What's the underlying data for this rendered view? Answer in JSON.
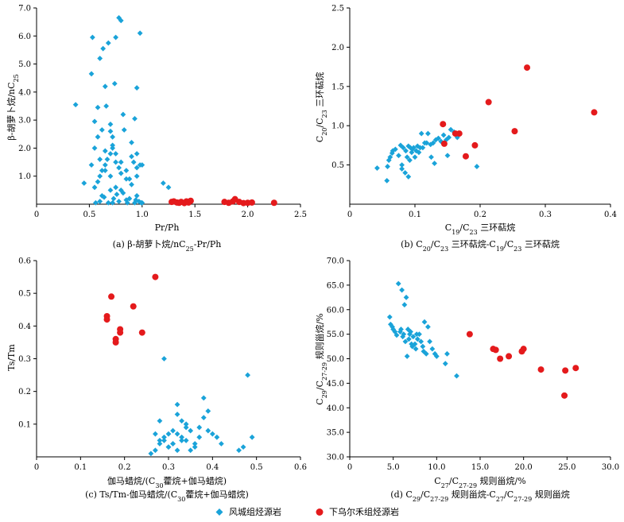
{
  "colors": {
    "blue": "#1aa3d9",
    "red": "#e41a1c",
    "axis": "#000000"
  },
  "legend": [
    {
      "label": "风城组烃源岩",
      "marker": "diamond",
      "color": "#1aa3d9"
    },
    {
      "label": "下乌尔禾组烃源岩",
      "marker": "circle",
      "color": "#e41a1c"
    }
  ],
  "captions": {
    "a": "(a) β-胡萝卜烷/nC25-Pr/Ph",
    "b": "(b) C20/C23 三环萜烷-C19/C23 三环萜烷",
    "c": "(c) Ts/Tm-伽马蜡烷/(C30藿烷+伽马蜡烷)",
    "d": "(d) C29/C27-29 规则甾烷-C27/C27-29 规则甾烷"
  },
  "chart_data": [
    {
      "id": "a",
      "type": "scatter",
      "xlabel": "Pr/Ph",
      "ylabel": "β-胡萝卜烷/nC25",
      "xlim": [
        0,
        2.5
      ],
      "ylim": [
        0,
        7.0
      ],
      "xticks": [
        0,
        0.5,
        1.0,
        1.5,
        2.0,
        2.5
      ],
      "xtick_labels": [
        "0",
        "0.5",
        "1.0",
        "1.5",
        "2.0",
        "2.5"
      ],
      "yticks": [
        1.0,
        2.0,
        3.0,
        4.0,
        5.0,
        6.0,
        7.0
      ],
      "ytick_labels": [
        "1.0",
        "2.0",
        "3.0",
        "4.0",
        "5.0",
        "6.0",
        "7.0"
      ],
      "series": [
        {
          "name": "风城组烃源岩",
          "color": "#1aa3d9",
          "marker": "diamond",
          "x": [
            0.37,
            0.45,
            0.52,
            0.53,
            0.55,
            0.58,
            0.6,
            0.62,
            0.63,
            0.65,
            0.66,
            0.68,
            0.7,
            0.72,
            0.74,
            0.75,
            0.78,
            0.8,
            0.82,
            0.83,
            0.93,
            0.95,
            0.98,
            0.55,
            0.58,
            0.6,
            0.62,
            0.65,
            0.67,
            0.7,
            0.72,
            0.75,
            0.78,
            0.8,
            0.85,
            0.9,
            0.92,
            0.95,
            0.98,
            0.55,
            0.6,
            0.65,
            0.7,
            0.72,
            0.75,
            0.8,
            0.85,
            0.88,
            0.9,
            0.95,
            1.0,
            0.6,
            0.62,
            0.68,
            0.7,
            0.73,
            0.78,
            0.82,
            0.88,
            0.93,
            0.95,
            0.97,
            0.52,
            0.58,
            0.65,
            0.7,
            0.75,
            0.8,
            0.85,
            0.9,
            0.95,
            1.0,
            1.2,
            1.25,
            1.3,
            0.56,
            0.64,
            0.72,
            0.76,
            0.86,
            0.94,
            0.99
          ],
          "y": [
            3.55,
            0.75,
            4.65,
            5.95,
            2.95,
            3.45,
            5.2,
            2.65,
            5.55,
            4.2,
            3.5,
            5.75,
            2.85,
            2.4,
            4.3,
            5.95,
            6.65,
            6.55,
            3.2,
            2.65,
            3.05,
            4.15,
            6.1,
            0.6,
            0.8,
            1.0,
            1.2,
            1.4,
            1.6,
            1.8,
            2.0,
            1.5,
            1.3,
            1.1,
            0.9,
            1.7,
            1.5,
            1.3,
            1.4,
            2.0,
            1.6,
            1.2,
            1.0,
            2.1,
            1.8,
            1.5,
            1.2,
            0.9,
            2.2,
            1.8,
            1.4,
            0.1,
            0.3,
            0.05,
            0.5,
            0.2,
            0.1,
            0.4,
            0.2,
            0.05,
            0.3,
            0.1,
            1.4,
            2.4,
            1.9,
            2.6,
            0.6,
            0.5,
            0.15,
            0.7,
            1.0,
            0.05,
            0.75,
            0.6,
            0.1,
            0.05,
            0.25,
            0.05,
            0.35,
            0.05,
            0.15,
            0.05
          ]
        },
        {
          "name": "下乌尔禾组烃源岩",
          "color": "#e41a1c",
          "marker": "circle",
          "x": [
            1.28,
            1.3,
            1.33,
            1.35,
            1.37,
            1.4,
            1.42,
            1.44,
            1.46,
            1.78,
            1.82,
            1.86,
            1.88,
            1.92,
            1.96,
            2.0,
            2.04,
            2.25
          ],
          "y": [
            0.08,
            0.1,
            0.06,
            0.05,
            0.08,
            0.04,
            0.1,
            0.06,
            0.12,
            0.08,
            0.05,
            0.1,
            0.18,
            0.08,
            0.04,
            0.05,
            0.06,
            0.05
          ]
        }
      ]
    },
    {
      "id": "b",
      "type": "scatter",
      "xlabel": "C19/C23 三环萜烷",
      "ylabel": "C20/C23 三环萜烷",
      "xlim": [
        0,
        0.4
      ],
      "ylim": [
        0,
        2.5
      ],
      "xticks": [
        0,
        0.1,
        0.2,
        0.3,
        0.4
      ],
      "xtick_labels": [
        "0",
        "0.1",
        "0.2",
        "0.3",
        "0.4"
      ],
      "yticks": [
        0.5,
        1.0,
        1.5,
        2.0,
        2.5
      ],
      "ytick_labels": [
        "0.5",
        "1.0",
        "1.5",
        "2.0",
        "2.5"
      ],
      "series": [
        {
          "name": "风城组烃源岩",
          "color": "#1aa3d9",
          "marker": "diamond",
          "x": [
            0.042,
            0.057,
            0.058,
            0.06,
            0.062,
            0.065,
            0.066,
            0.075,
            0.078,
            0.08,
            0.082,
            0.085,
            0.086,
            0.088,
            0.09,
            0.092,
            0.093,
            0.095,
            0.096,
            0.098,
            0.1,
            0.102,
            0.104,
            0.106,
            0.108,
            0.11,
            0.112,
            0.115,
            0.12,
            0.124,
            0.128,
            0.132,
            0.136,
            0.14,
            0.144,
            0.148,
            0.152,
            0.155,
            0.16,
            0.165,
            0.195,
            0.13,
            0.125,
            0.118,
            0.15,
            0.09,
            0.08,
            0.07
          ],
          "y": [
            0.46,
            0.3,
            0.48,
            0.56,
            0.6,
            0.65,
            0.68,
            0.62,
            0.75,
            0.5,
            0.72,
            0.4,
            0.68,
            0.6,
            0.74,
            0.56,
            0.72,
            0.66,
            0.7,
            0.72,
            0.6,
            0.68,
            0.74,
            0.66,
            0.72,
            0.9,
            0.72,
            0.78,
            0.9,
            0.76,
            0.78,
            0.82,
            0.84,
            0.8,
            0.88,
            0.82,
            0.85,
            0.95,
            0.92,
            0.85,
            0.48,
            0.52,
            0.6,
            0.78,
            0.62,
            0.35,
            0.45,
            0.7
          ]
        },
        {
          "name": "下乌尔禾组烃源岩",
          "color": "#e41a1c",
          "marker": "circle",
          "x": [
            0.143,
            0.145,
            0.162,
            0.168,
            0.178,
            0.192,
            0.213,
            0.253,
            0.272,
            0.375
          ],
          "y": [
            1.02,
            0.77,
            0.9,
            0.9,
            0.61,
            0.75,
            1.3,
            0.93,
            1.74,
            1.17
          ]
        }
      ]
    },
    {
      "id": "c",
      "type": "scatter",
      "xlabel": "伽马蜡烷/(C30藿烷+伽马蜡烷)",
      "ylabel": "Ts/Tm",
      "xlim": [
        0,
        0.6
      ],
      "ylim": [
        0,
        0.6
      ],
      "xticks": [
        0,
        0.1,
        0.2,
        0.3,
        0.4,
        0.5,
        0.6
      ],
      "xtick_labels": [
        "0",
        "0.1",
        "0.2",
        "0.3",
        "0.4",
        "0.5",
        "0.6"
      ],
      "yticks": [
        0.1,
        0.2,
        0.3,
        0.4,
        0.5,
        0.6
      ],
      "ytick_labels": [
        "0.1",
        "0.2",
        "0.3",
        "0.4",
        "0.5",
        "0.6"
      ],
      "series": [
        {
          "name": "风城组烃源岩",
          "color": "#1aa3d9",
          "marker": "diamond",
          "x": [
            0.26,
            0.27,
            0.28,
            0.29,
            0.3,
            0.31,
            0.32,
            0.33,
            0.34,
            0.35,
            0.36,
            0.37,
            0.38,
            0.39,
            0.4,
            0.41,
            0.42,
            0.46,
            0.47,
            0.48,
            0.49,
            0.27,
            0.28,
            0.29,
            0.3,
            0.31,
            0.32,
            0.33,
            0.34,
            0.35,
            0.36,
            0.28,
            0.3,
            0.32,
            0.33,
            0.34,
            0.37,
            0.38,
            0.39,
            0.29,
            0.31,
            0.32
          ],
          "y": [
            0.01,
            0.07,
            0.11,
            0.3,
            0.07,
            0.04,
            0.16,
            0.11,
            0.05,
            0.08,
            0.03,
            0.09,
            0.18,
            0.14,
            0.07,
            0.06,
            0.04,
            0.02,
            0.03,
            0.25,
            0.06,
            0.02,
            0.05,
            0.06,
            0.03,
            0.04,
            0.07,
            0.05,
            0.09,
            0.02,
            0.04,
            0.04,
            0.03,
            0.02,
            0.06,
            0.1,
            0.06,
            0.12,
            0.08,
            0.05,
            0.08,
            0.13
          ]
        },
        {
          "name": "下乌尔禾组烃源岩",
          "color": "#e41a1c",
          "marker": "circle",
          "x": [
            0.16,
            0.16,
            0.17,
            0.18,
            0.18,
            0.19,
            0.19,
            0.22,
            0.24,
            0.27
          ],
          "y": [
            0.43,
            0.42,
            0.49,
            0.35,
            0.36,
            0.39,
            0.38,
            0.46,
            0.38,
            0.55
          ]
        }
      ]
    },
    {
      "id": "d",
      "type": "scatter",
      "xlabel": "C27/C27-29 规则甾烷/%",
      "ylabel": "C29/C27-29 规则甾烷/%",
      "xlim": [
        0,
        30.0
      ],
      "ylim": [
        30.0,
        70.0
      ],
      "xticks": [
        0,
        5.0,
        10.0,
        15.0,
        20.0,
        25.0,
        30.0
      ],
      "xtick_labels": [
        "0",
        "5.0",
        "10.0",
        "15.0",
        "20.0",
        "25.0",
        "30.0"
      ],
      "yticks": [
        30.0,
        35.0,
        40.0,
        45.0,
        50.0,
        55.0,
        60.0,
        65.0,
        70.0
      ],
      "ytick_labels": [
        "30.0",
        "35.0",
        "40.0",
        "45.0",
        "50.0",
        "55.0",
        "60.0",
        "65.0",
        "70.0"
      ],
      "series": [
        {
          "name": "风城组烃源岩",
          "color": "#1aa3d9",
          "marker": "diamond",
          "x": [
            4.6,
            4.7,
            4.9,
            5.0,
            5.2,
            5.4,
            5.6,
            5.8,
            6.0,
            6.1,
            6.2,
            6.3,
            6.4,
            6.5,
            6.6,
            6.7,
            6.8,
            7.0,
            7.1,
            7.2,
            7.3,
            7.5,
            7.6,
            7.8,
            8.0,
            8.2,
            8.4,
            8.6,
            8.8,
            9.0,
            9.2,
            9.5,
            9.8,
            10.0,
            11.0,
            11.2,
            12.3,
            5.9,
            6.9,
            7.7,
            8.5
          ],
          "y": [
            58.5,
            57.0,
            56.5,
            56.0,
            55.5,
            54.8,
            65.3,
            55.5,
            64.0,
            54.5,
            55.0,
            61.0,
            53.5,
            62.5,
            50.5,
            56.0,
            54.0,
            55.5,
            53.0,
            52.5,
            54.5,
            53.0,
            52.0,
            54.0,
            55.0,
            53.5,
            52.5,
            57.5,
            51.0,
            56.5,
            53.5,
            52.0,
            51.0,
            50.5,
            49.0,
            51.0,
            46.5,
            56.0,
            55.0,
            55.0,
            51.5
          ]
        },
        {
          "name": "下乌尔禾组烃源岩",
          "color": "#e41a1c",
          "marker": "circle",
          "x": [
            13.8,
            16.5,
            16.8,
            17.3,
            18.3,
            19.8,
            20.0,
            22.0,
            24.8,
            24.7,
            26.0
          ],
          "y": [
            55.0,
            52.0,
            51.8,
            50.0,
            50.5,
            51.5,
            52.0,
            47.8,
            47.6,
            42.5,
            48.1
          ]
        }
      ]
    }
  ]
}
